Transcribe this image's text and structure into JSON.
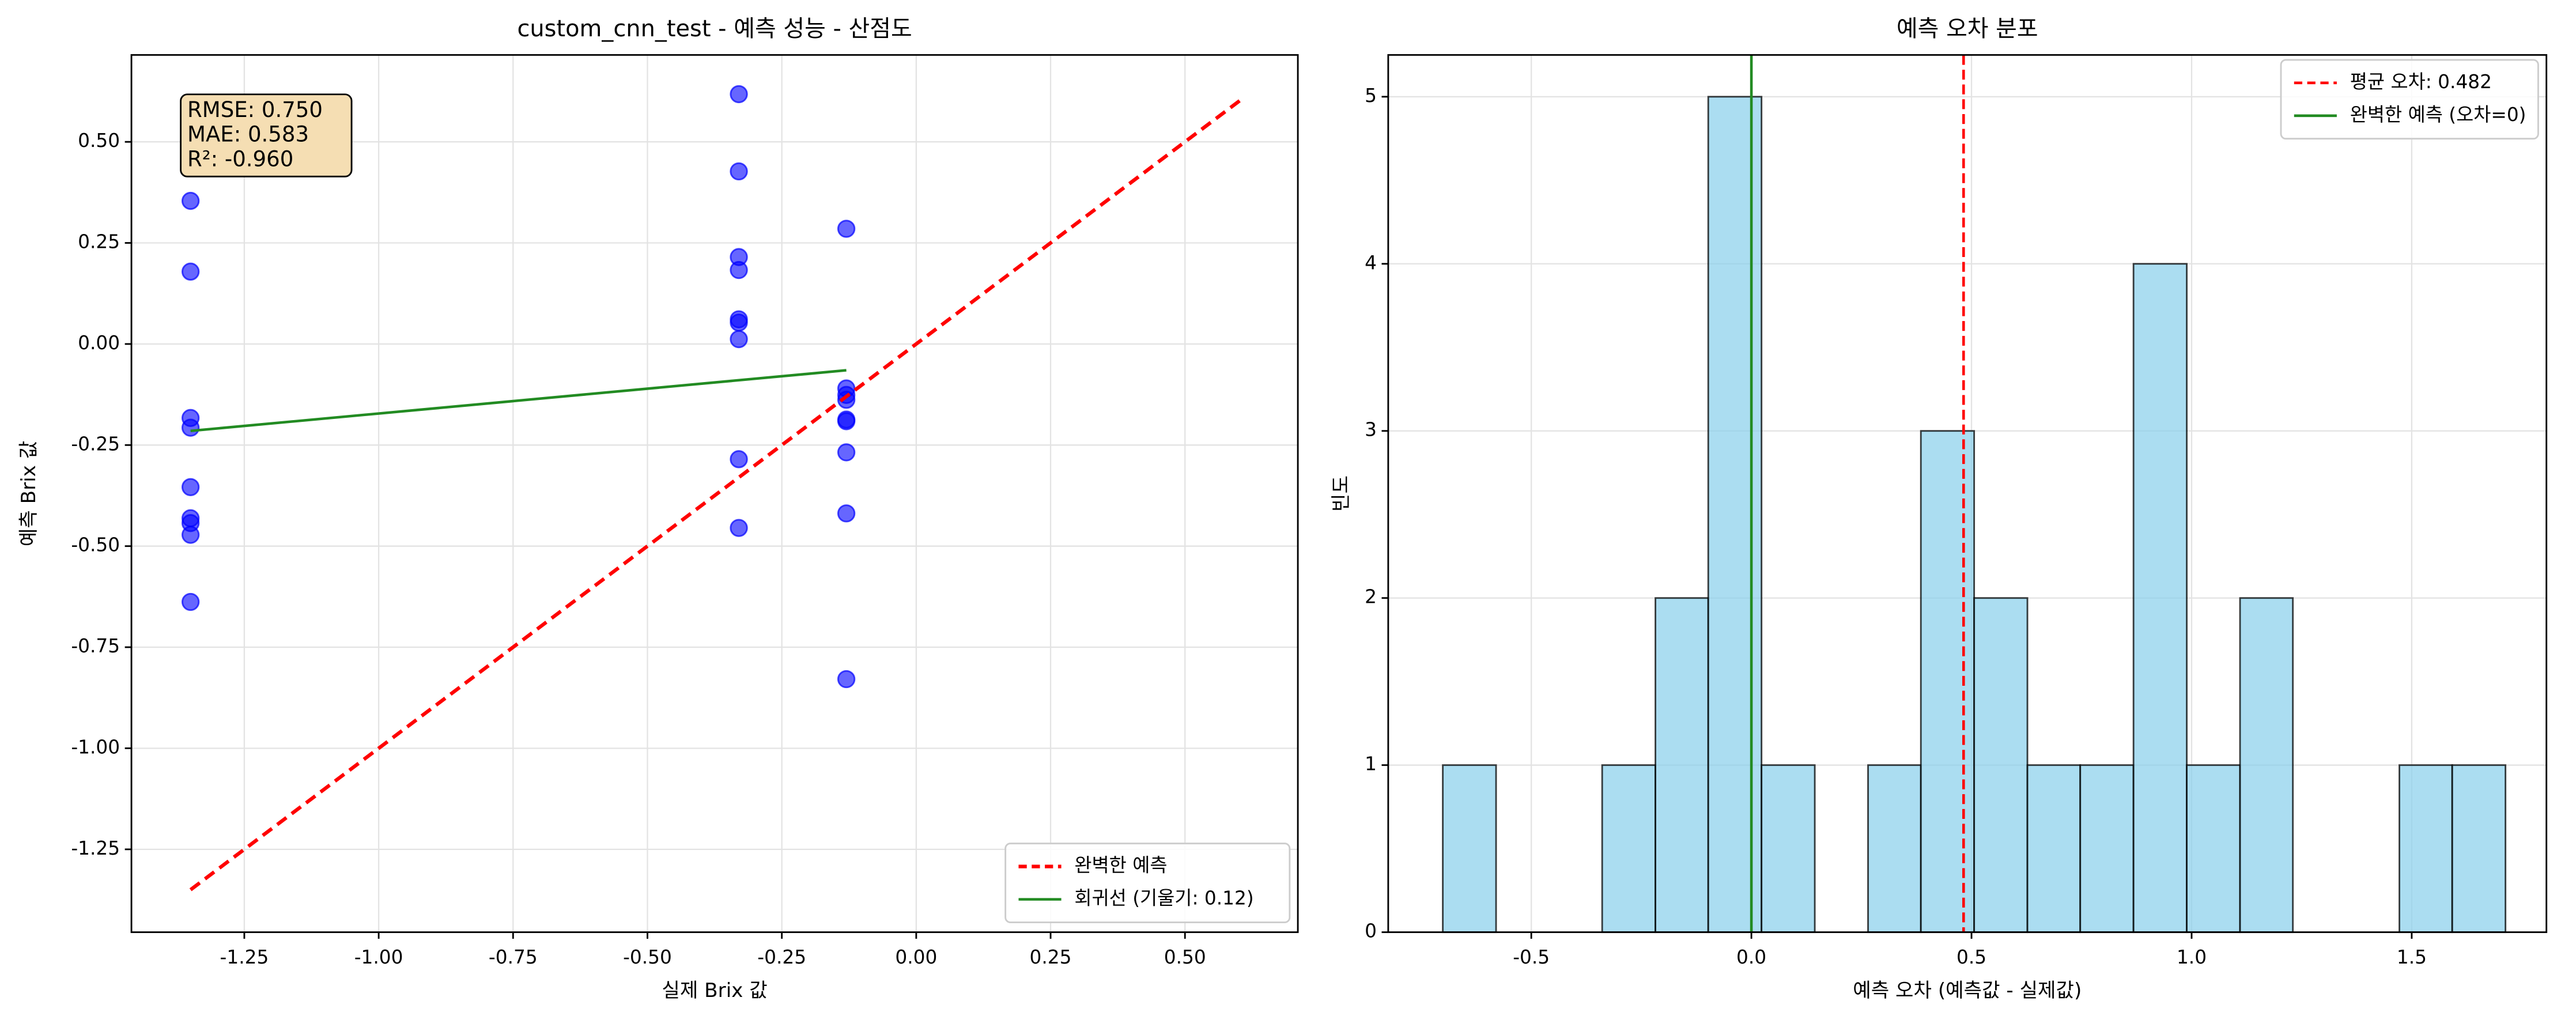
{
  "chart_data": [
    {
      "type": "scatter",
      "title": "custom_cnn_test - 예측 성능 - 산점도",
      "x_label": "실제 Brix 값",
      "y_label": "예측 Brix 값",
      "annotation": [
        "RMSE: 0.750",
        "MAE: 0.583",
        "R²: -0.960"
      ],
      "xlim": [
        -1.46,
        0.71
      ],
      "ylim": [
        -1.455,
        0.715
      ],
      "xticks": [
        {
          "value": -1.25,
          "label": "-1.25"
        },
        {
          "value": -1.0,
          "label": "-1.00"
        },
        {
          "value": -0.75,
          "label": "-0.75"
        },
        {
          "value": -0.5,
          "label": "-0.50"
        },
        {
          "value": -0.25,
          "label": "-0.25"
        },
        {
          "value": 0,
          "label": "0.00"
        },
        {
          "value": 0.25,
          "label": "0.25"
        },
        {
          "value": 0.5,
          "label": "0.50"
        }
      ],
      "yticks": [
        {
          "value": -1.25,
          "label": "-1.25"
        },
        {
          "value": -1.0,
          "label": "-1.00"
        },
        {
          "value": -0.75,
          "label": "-0.75"
        },
        {
          "value": -0.5,
          "label": "-0.50"
        },
        {
          "value": -0.25,
          "label": "-0.25"
        },
        {
          "value": 0,
          "label": "0.00"
        },
        {
          "value": 0.25,
          "label": "0.25"
        },
        {
          "value": 0.5,
          "label": "0.50"
        }
      ],
      "grid": true,
      "legend": "lower right",
      "series": [
        {
          "kind": "points",
          "color": "#0000ff",
          "x": [
            -1.35,
            -1.35,
            -1.35,
            -1.35,
            -1.35,
            -1.35,
            -1.35,
            -1.35,
            -1.35,
            -0.33,
            -0.33,
            -0.33,
            -0.33,
            -0.33,
            -0.33,
            -0.33,
            -0.33,
            -0.33,
            -0.13,
            -0.13,
            -0.13,
            -0.13,
            -0.13,
            -0.13,
            -0.13,
            -0.13,
            -0.13
          ],
          "values": [
            0.354,
            0.179,
            -0.183,
            -0.207,
            -0.354,
            -0.431,
            -0.443,
            -0.472,
            -0.638,
            0.618,
            0.427,
            0.215,
            0.183,
            0.061,
            0.053,
            0.012,
            -0.285,
            -0.455,
            0.285,
            -0.11,
            -0.126,
            -0.138,
            -0.187,
            -0.191,
            -0.268,
            -0.419,
            -0.829
          ]
        },
        {
          "kind": "line",
          "name": "완벽한 예측",
          "color": "#ff0000",
          "dashed": true,
          "x": [
            -1.35,
            0.61
          ],
          "values": [
            -1.35,
            0.61
          ]
        },
        {
          "kind": "line",
          "name": "회귀선 (기울기: 0.12)",
          "color": "#228b22",
          "dashed": false,
          "x": [
            -1.35,
            -0.13
          ],
          "values": [
            -0.215,
            -0.065
          ]
        }
      ]
    },
    {
      "type": "histogram",
      "title": "예측 오차 분포",
      "x_label": "예측 오차 (예측값 - 실제값)",
      "y_label": "빈도",
      "color": "#87ceeb",
      "bins": [
        -0.701,
        -0.58,
        -0.46,
        -0.339,
        -0.218,
        -0.098,
        0.023,
        0.144,
        0.265,
        0.385,
        0.506,
        0.627,
        0.747,
        0.868,
        0.989,
        1.11,
        1.23,
        1.351,
        1.472,
        1.592,
        1.713
      ],
      "values": [
        1,
        0,
        0,
        1,
        2,
        5,
        1,
        0,
        1,
        3,
        2,
        1,
        1,
        4,
        1,
        2,
        0,
        0,
        1,
        1
      ],
      "xlim": [
        -0.825,
        1.806
      ],
      "ylim": [
        0,
        5.25
      ],
      "xticks": [
        -0.5,
        {
          "value": 0,
          "label": "0.0"
        },
        0.5,
        {
          "value": 1,
          "label": "1.0"
        },
        1.5
      ],
      "yticks": [
        0,
        1,
        2,
        3,
        4,
        5
      ],
      "grid": true,
      "legend": "upper right",
      "lines": [
        {
          "name": "평균 오차: 0.482",
          "x": 0.482,
          "color": "#ff0000",
          "dashed": true
        },
        {
          "name": "완벽한 예측 (오차=0)",
          "x": 0,
          "color": "#228b22",
          "dashed": false
        }
      ]
    }
  ]
}
